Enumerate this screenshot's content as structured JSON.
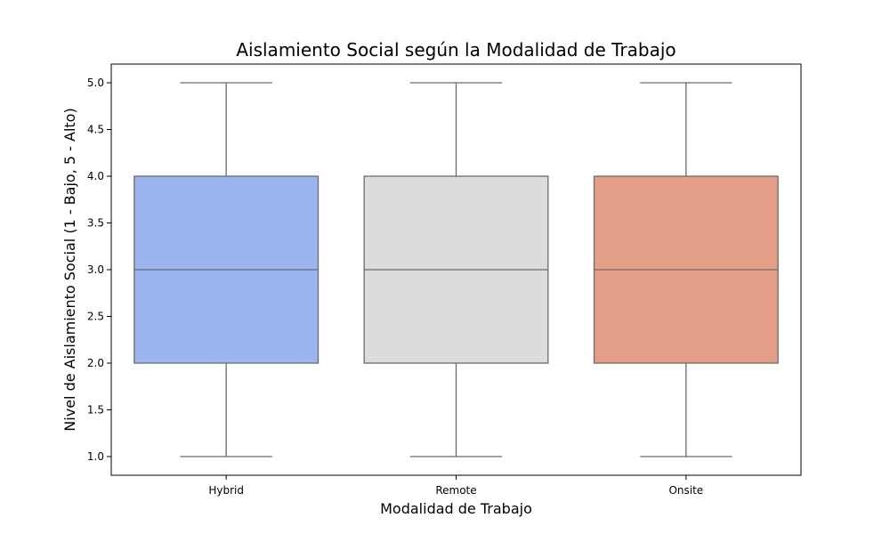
{
  "chart_data": {
    "type": "box",
    "title": "Aislamiento Social según la Modalidad de Trabajo",
    "xlabel": "Modalidad de Trabajo",
    "ylabel": "Nivel de Aislamiento Social (1 - Bajo, 5 - Alto)",
    "categories": [
      "Hybrid",
      "Remote",
      "Onsite"
    ],
    "boxes": [
      {
        "name": "Hybrid",
        "min": 1.0,
        "q1": 2.0,
        "median": 3.0,
        "q3": 4.0,
        "max": 5.0,
        "color": "#9ab5f0"
      },
      {
        "name": "Remote",
        "min": 1.0,
        "q1": 2.0,
        "median": 3.0,
        "q3": 4.0,
        "max": 5.0,
        "color": "#dcdcdc"
      },
      {
        "name": "Onsite",
        "min": 1.0,
        "q1": 2.0,
        "median": 3.0,
        "q3": 4.0,
        "max": 5.0,
        "color": "#e49e88"
      }
    ],
    "yticks": [
      1.0,
      1.5,
      2.0,
      2.5,
      3.0,
      3.5,
      4.0,
      4.5,
      5.0
    ],
    "ytick_labels": [
      "1.0",
      "1.5",
      "2.0",
      "2.5",
      "3.0",
      "3.5",
      "4.0",
      "4.5",
      "5.0"
    ],
    "ylim": [
      0.8,
      5.2
    ],
    "grid": false,
    "line_color": "#6b6b6b"
  }
}
